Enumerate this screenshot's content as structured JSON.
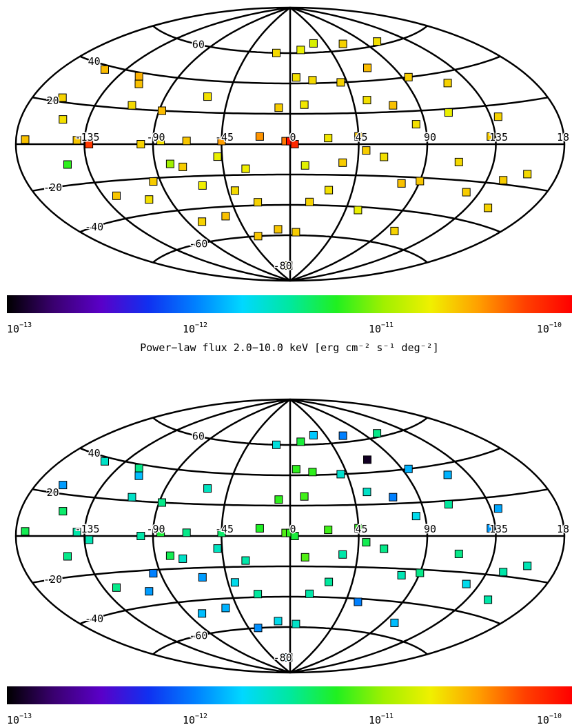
{
  "colorbar": {
    "tick_labels": [
      {
        "base": "10",
        "exp": "−13"
      },
      {
        "base": "10",
        "exp": "−12"
      },
      {
        "base": "10",
        "exp": "−11"
      },
      {
        "base": "10",
        "exp": "−10"
      }
    ],
    "stops": [
      "#000000",
      "#3a0070",
      "#5a00c8",
      "#1030f0",
      "#0080ff",
      "#00d8ff",
      "#00e8a0",
      "#20f020",
      "#a0f000",
      "#f0f000",
      "#ffa000",
      "#ff4000",
      "#ff0000"
    ]
  },
  "chart_data": [
    {
      "type": "scatter",
      "projection": "aitoff",
      "title": "",
      "xlabel": "Power−law flux 2.0−10.0 keV  [erg cm⁻² s⁻¹ deg⁻²]",
      "xlim": [
        -180,
        180
      ],
      "ylim": [
        -90,
        90
      ],
      "grid": true,
      "lon_labels": [
        "-135",
        "-90",
        "-45",
        "0",
        "45",
        "90",
        "135",
        "18"
      ],
      "lat_labels": [
        "60",
        "40",
        "20",
        "-20",
        "-40",
        "-60",
        "-80"
      ],
      "color_scale": {
        "type": "log",
        "min": 1e-13,
        "max": 1e-10
      },
      "points": [
        {
          "lon": -174,
          "lat": 2,
          "value": 2.5e-11
        },
        {
          "lon": -160,
          "lat": 22,
          "value": 2.2e-11
        },
        {
          "lon": -150,
          "lat": 38,
          "value": 2.6e-11
        },
        {
          "lon": -152,
          "lat": 12,
          "value": 2e-11
        },
        {
          "lon": -148,
          "lat": -10,
          "value": 6e-12
        },
        {
          "lon": -140,
          "lat": 2,
          "value": 2.4e-11
        },
        {
          "lon": -132,
          "lat": 0,
          "value": 6e-11
        },
        {
          "lon": -126,
          "lat": -28,
          "value": 2.4e-11
        },
        {
          "lon": -120,
          "lat": 38,
          "value": 2.8e-11
        },
        {
          "lon": -115,
          "lat": 34,
          "value": 2.5e-11
        },
        {
          "lon": -110,
          "lat": 22,
          "value": 2.1e-11
        },
        {
          "lon": -105,
          "lat": -32,
          "value": 2e-11
        },
        {
          "lon": -98,
          "lat": 0,
          "value": 2.2e-11
        },
        {
          "lon": -95,
          "lat": -22,
          "value": 2.3e-11
        },
        {
          "lon": -88,
          "lat": 20,
          "value": 2.6e-11
        },
        {
          "lon": -85,
          "lat": 2,
          "value": 2e-11
        },
        {
          "lon": -80,
          "lat": -12,
          "value": 1e-11
        },
        {
          "lon": -78,
          "lat": -48,
          "value": 2.2e-11
        },
        {
          "lon": -72,
          "lat": -14,
          "value": 2.3e-11
        },
        {
          "lon": -68,
          "lat": 2,
          "value": 2.4e-11
        },
        {
          "lon": -62,
          "lat": -26,
          "value": 1.8e-11
        },
        {
          "lon": -60,
          "lat": 30,
          "value": 2e-11
        },
        {
          "lon": -55,
          "lat": -46,
          "value": 2.5e-11
        },
        {
          "lon": -48,
          "lat": -8,
          "value": 1.7e-11
        },
        {
          "lon": -45,
          "lat": 2,
          "value": 3.2e-11
        },
        {
          "lon": -40,
          "lat": -30,
          "value": 2.1e-11
        },
        {
          "lon": -35,
          "lat": -60,
          "value": 2.4e-11
        },
        {
          "lon": -30,
          "lat": -16,
          "value": 1.8e-11
        },
        {
          "lon": -25,
          "lat": -38,
          "value": 2.2e-11
        },
        {
          "lon": -20,
          "lat": 5,
          "value": 3.4e-11
        },
        {
          "lon": -15,
          "lat": 60,
          "value": 2.1e-11
        },
        {
          "lon": -12,
          "lat": -56,
          "value": 2.4e-11
        },
        {
          "lon": -8,
          "lat": 24,
          "value": 2.3e-11
        },
        {
          "lon": -5,
          "lat": -80,
          "value": 1.7e-11
        },
        {
          "lon": -3,
          "lat": 2,
          "value": 4e-11
        },
        {
          "lon": 0,
          "lat": 2,
          "value": 9e-11
        },
        {
          "lon": 3,
          "lat": 0,
          "value": 7e-11
        },
        {
          "lon": 5,
          "lat": 44,
          "value": 2e-11
        },
        {
          "lon": 6,
          "lat": -58,
          "value": 2.3e-11
        },
        {
          "lon": 10,
          "lat": 26,
          "value": 1.9e-11
        },
        {
          "lon": 10,
          "lat": -14,
          "value": 1.6e-11
        },
        {
          "lon": 12,
          "lat": 62,
          "value": 1.7e-11
        },
        {
          "lon": 15,
          "lat": -38,
          "value": 2.2e-11
        },
        {
          "lon": 18,
          "lat": 42,
          "value": 2.1e-11
        },
        {
          "lon": 25,
          "lat": 4,
          "value": 1.9e-11
        },
        {
          "lon": 28,
          "lat": -30,
          "value": 2e-11
        },
        {
          "lon": 30,
          "lat": 66,
          "value": 1.5e-11
        },
        {
          "lon": 35,
          "lat": -12,
          "value": 2.3e-11
        },
        {
          "lon": 40,
          "lat": 40,
          "value": 2.2e-11
        },
        {
          "lon": 45,
          "lat": 5,
          "value": 2.4e-11
        },
        {
          "lon": 50,
          "lat": -4,
          "value": 2.3e-11
        },
        {
          "lon": 55,
          "lat": 28,
          "value": 2e-11
        },
        {
          "lon": 55,
          "lat": -42,
          "value": 1.7e-11
        },
        {
          "lon": 62,
          "lat": -8,
          "value": 2e-11
        },
        {
          "lon": 65,
          "lat": 64,
          "value": 2.2e-11
        },
        {
          "lon": 68,
          "lat": 48,
          "value": 2.6e-11
        },
        {
          "lon": 72,
          "lat": 24,
          "value": 2.5e-11
        },
        {
          "lon": 78,
          "lat": -24,
          "value": 2.5e-11
        },
        {
          "lon": 84,
          "lat": 12,
          "value": 2e-11
        },
        {
          "lon": 90,
          "lat": -22,
          "value": 2.4e-11
        },
        {
          "lon": 95,
          "lat": 40,
          "value": 2.3e-11
        },
        {
          "lon": 100,
          "lat": -52,
          "value": 2.2e-11
        },
        {
          "lon": 108,
          "lat": 18,
          "value": 1.7e-11
        },
        {
          "lon": 112,
          "lat": -10,
          "value": 2.1e-11
        },
        {
          "lon": 120,
          "lat": 34,
          "value": 2.2e-11
        },
        {
          "lon": 126,
          "lat": -26,
          "value": 2.3e-11
        },
        {
          "lon": 132,
          "lat": 4,
          "value": 2.3e-11
        },
        {
          "lon": 140,
          "lat": 14,
          "value": 2.2e-11
        },
        {
          "lon": 146,
          "lat": -18,
          "value": 2.3e-11
        },
        {
          "lon": 150,
          "lat": -32,
          "value": 2.2e-11
        },
        {
          "lon": 160,
          "lat": -14,
          "value": 2.1e-11
        },
        {
          "lon": 105,
          "lat": 62,
          "value": 2e-11
        }
      ]
    },
    {
      "type": "scatter",
      "projection": "aitoff",
      "title": "",
      "xlabel": "",
      "xlim": [
        -180,
        180
      ],
      "ylim": [
        -90,
        90
      ],
      "grid": true,
      "lon_labels": [
        "-135",
        "-90",
        "-45",
        "0",
        "45",
        "90",
        "135",
        "18"
      ],
      "lat_labels": [
        "60",
        "40",
        "20",
        "-20",
        "-40",
        "-60",
        "-80"
      ],
      "color_scale": {
        "type": "log",
        "min": 1e-13,
        "max": 1e-10
      },
      "points": [
        {
          "lon": -174,
          "lat": 2,
          "value": 4.5e-12
        },
        {
          "lon": -162,
          "lat": 24,
          "value": 1.2e-12
        },
        {
          "lon": -150,
          "lat": 38,
          "value": 2.5e-12
        },
        {
          "lon": -152,
          "lat": 12,
          "value": 4e-12
        },
        {
          "lon": -148,
          "lat": -10,
          "value": 3.5e-12
        },
        {
          "lon": -140,
          "lat": 2,
          "value": 3e-12
        },
        {
          "lon": -132,
          "lat": -2,
          "value": 2.8e-12
        },
        {
          "lon": -126,
          "lat": -28,
          "value": 3.5e-12
        },
        {
          "lon": -120,
          "lat": 38,
          "value": 3.5e-12
        },
        {
          "lon": -115,
          "lat": 34,
          "value": 1.5e-12
        },
        {
          "lon": -110,
          "lat": 22,
          "value": 2.5e-12
        },
        {
          "lon": -105,
          "lat": -32,
          "value": 1.2e-12
        },
        {
          "lon": -98,
          "lat": 0,
          "value": 3e-12
        },
        {
          "lon": -95,
          "lat": -22,
          "value": 1e-12
        },
        {
          "lon": -88,
          "lat": 20,
          "value": 3.5e-12
        },
        {
          "lon": -85,
          "lat": 2,
          "value": 5e-12
        },
        {
          "lon": -80,
          "lat": -12,
          "value": 4.5e-12
        },
        {
          "lon": -78,
          "lat": -48,
          "value": 1.5e-12
        },
        {
          "lon": -72,
          "lat": -14,
          "value": 2.5e-12
        },
        {
          "lon": -68,
          "lat": 2,
          "value": 3.5e-12
        },
        {
          "lon": -62,
          "lat": -26,
          "value": 1.2e-12
        },
        {
          "lon": -60,
          "lat": 30,
          "value": 2.6e-12
        },
        {
          "lon": -55,
          "lat": -46,
          "value": 1.4e-12
        },
        {
          "lon": -48,
          "lat": -8,
          "value": 2.6e-12
        },
        {
          "lon": -45,
          "lat": 2,
          "value": 4e-12
        },
        {
          "lon": -40,
          "lat": -30,
          "value": 2e-12
        },
        {
          "lon": -35,
          "lat": -60,
          "value": 1.1e-12
        },
        {
          "lon": -30,
          "lat": -16,
          "value": 3e-12
        },
        {
          "lon": -25,
          "lat": -38,
          "value": 3.2e-12
        },
        {
          "lon": -20,
          "lat": 5,
          "value": 5.5e-12
        },
        {
          "lon": -15,
          "lat": 60,
          "value": 2.2e-12
        },
        {
          "lon": -12,
          "lat": -56,
          "value": 2e-12
        },
        {
          "lon": -8,
          "lat": 24,
          "value": 6e-12
        },
        {
          "lon": -5,
          "lat": -80,
          "value": 1.5e-12
        },
        {
          "lon": -3,
          "lat": 2,
          "value": 7e-12
        },
        {
          "lon": 0,
          "lat": 2,
          "value": 6e-12
        },
        {
          "lon": 3,
          "lat": 0,
          "value": 5e-12
        },
        {
          "lon": 5,
          "lat": 44,
          "value": 6e-12
        },
        {
          "lon": 6,
          "lat": -58,
          "value": 2.5e-12
        },
        {
          "lon": 10,
          "lat": 26,
          "value": 6.5e-12
        },
        {
          "lon": 10,
          "lat": -14,
          "value": 7e-12
        },
        {
          "lon": 12,
          "lat": 62,
          "value": 5e-12
        },
        {
          "lon": 15,
          "lat": -38,
          "value": 3e-12
        },
        {
          "lon": 18,
          "lat": 42,
          "value": 6e-12
        },
        {
          "lon": 25,
          "lat": 4,
          "value": 6.5e-12
        },
        {
          "lon": 28,
          "lat": -30,
          "value": 3.2e-12
        },
        {
          "lon": 30,
          "lat": 66,
          "value": 1.6e-12
        },
        {
          "lon": 35,
          "lat": -12,
          "value": 3e-12
        },
        {
          "lon": 40,
          "lat": 40,
          "value": 2.4e-12
        },
        {
          "lon": 45,
          "lat": 5,
          "value": 6e-12
        },
        {
          "lon": 50,
          "lat": -4,
          "value": 4.5e-12
        },
        {
          "lon": 55,
          "lat": 28,
          "value": 2.5e-12
        },
        {
          "lon": 55,
          "lat": -42,
          "value": 1e-12
        },
        {
          "lon": 62,
          "lat": -8,
          "value": 3.5e-12
        },
        {
          "lon": 65,
          "lat": 64,
          "value": 1e-12
        },
        {
          "lon": 68,
          "lat": 48,
          "value": 1.2e-13
        },
        {
          "lon": 72,
          "lat": 24,
          "value": 1e-12
        },
        {
          "lon": 78,
          "lat": -24,
          "value": 2.8e-12
        },
        {
          "lon": 84,
          "lat": 12,
          "value": 2e-12
        },
        {
          "lon": 90,
          "lat": -22,
          "value": 3.5e-12
        },
        {
          "lon": 95,
          "lat": 40,
          "value": 1.4e-12
        },
        {
          "lon": 100,
          "lat": -52,
          "value": 1.5e-12
        },
        {
          "lon": 108,
          "lat": 18,
          "value": 3.2e-12
        },
        {
          "lon": 112,
          "lat": -10,
          "value": 3.5e-12
        },
        {
          "lon": 120,
          "lat": 34,
          "value": 1.4e-12
        },
        {
          "lon": 126,
          "lat": -26,
          "value": 2e-12
        },
        {
          "lon": 132,
          "lat": 4,
          "value": 1.2e-12
        },
        {
          "lon": 140,
          "lat": 14,
          "value": 1.3e-12
        },
        {
          "lon": 146,
          "lat": -18,
          "value": 3e-12
        },
        {
          "lon": 150,
          "lat": -32,
          "value": 3e-12
        },
        {
          "lon": 160,
          "lat": -14,
          "value": 2.8e-12
        },
        {
          "lon": 105,
          "lat": 62,
          "value": 3.5e-12
        }
      ]
    }
  ]
}
